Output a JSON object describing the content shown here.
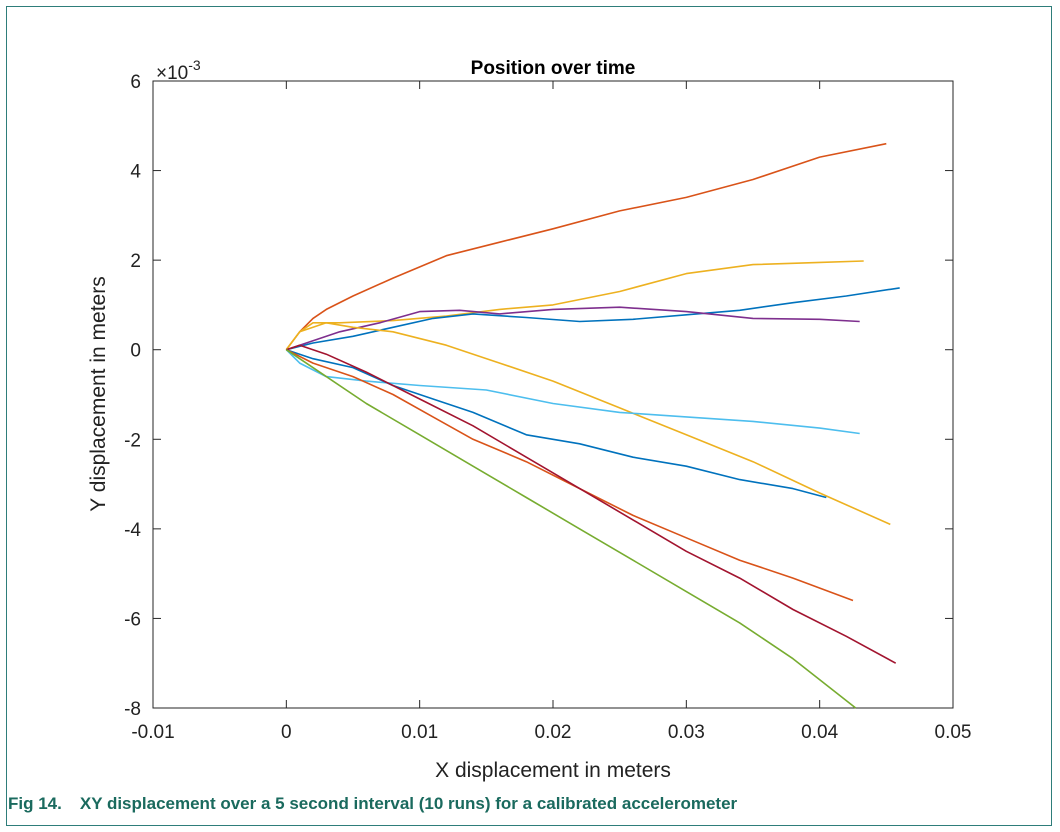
{
  "figure": {
    "caption_number": "Fig 14.",
    "caption_text": "XY displacement over a 5 second interval (10 runs) for a calibrated accelerometer"
  },
  "chart_data": {
    "type": "line",
    "title": "Position over time",
    "xlabel": "X displacement in meters",
    "ylabel": "Y displacement in meters",
    "y_multiplier_label": "×10",
    "y_multiplier_exp": "-3",
    "xlim": [
      -0.01,
      0.05
    ],
    "ylim": [
      -0.008,
      0.006
    ],
    "x_ticks": [
      -0.01,
      0,
      0.01,
      0.02,
      0.03,
      0.04,
      0.05
    ],
    "x_tick_labels": [
      "-0.01",
      "0",
      "0.01",
      "0.02",
      "0.03",
      "0.04",
      "0.05"
    ],
    "y_ticks": [
      -0.008,
      -0.006,
      -0.004,
      -0.002,
      0,
      0.002,
      0.004,
      0.006
    ],
    "y_tick_labels": [
      "-8",
      "-6",
      "-4",
      "-2",
      "0",
      "2",
      "4",
      "6"
    ],
    "grid": false,
    "series": [
      {
        "color": "#D95319",
        "x": [
          0,
          0.001,
          0.002,
          0.003,
          0.005,
          0.008,
          0.012,
          0.016,
          0.02,
          0.025,
          0.03,
          0.035,
          0.04,
          0.045
        ],
        "y": [
          0,
          0.0004,
          0.0007,
          0.0009,
          0.0012,
          0.0016,
          0.0021,
          0.0024,
          0.0027,
          0.0031,
          0.0034,
          0.0038,
          0.0043,
          0.0046
        ]
      },
      {
        "color": "#EDB120",
        "x": [
          0,
          0.001,
          0.002,
          0.004,
          0.008,
          0.012,
          0.016,
          0.02,
          0.025,
          0.03,
          0.035,
          0.04,
          0.0433
        ],
        "y": [
          0,
          0.0004,
          0.0006,
          0.0006,
          0.00065,
          0.00075,
          0.0009,
          0.001,
          0.0013,
          0.0017,
          0.0019,
          0.00195,
          0.00198
        ]
      },
      {
        "color": "#0072BD",
        "x": [
          0,
          0.002,
          0.005,
          0.008,
          0.011,
          0.014,
          0.018,
          0.022,
          0.026,
          0.03,
          0.034,
          0.038,
          0.042,
          0.046
        ],
        "y": [
          0,
          0.00015,
          0.0003,
          0.0005,
          0.0007,
          0.0008,
          0.00072,
          0.00063,
          0.00068,
          0.00078,
          0.00088,
          0.00105,
          0.0012,
          0.00138
        ]
      },
      {
        "color": "#7E2F8E",
        "x": [
          0,
          0.002,
          0.004,
          0.007,
          0.01,
          0.013,
          0.016,
          0.02,
          0.025,
          0.03,
          0.035,
          0.04,
          0.043
        ],
        "y": [
          0,
          0.0002,
          0.0004,
          0.0006,
          0.00085,
          0.00088,
          0.0008,
          0.0009,
          0.00095,
          0.00085,
          0.0007,
          0.00068,
          0.00063
        ]
      },
      {
        "color": "#EDB120",
        "x": [
          0,
          0.001,
          0.003,
          0.005,
          0.008,
          0.012,
          0.016,
          0.02,
          0.025,
          0.03,
          0.035,
          0.04,
          0.0453
        ],
        "y": [
          0,
          0.0004,
          0.0006,
          0.0005,
          0.0004,
          0.0001,
          -0.0003,
          -0.0007,
          -0.0013,
          -0.0019,
          -0.0025,
          -0.0032,
          -0.0039
        ]
      },
      {
        "color": "#4DBEEE",
        "x": [
          0,
          0.001,
          0.003,
          0.006,
          0.01,
          0.015,
          0.02,
          0.025,
          0.03,
          0.035,
          0.04,
          0.043
        ],
        "y": [
          0,
          -0.0003,
          -0.0006,
          -0.0007,
          -0.0008,
          -0.0009,
          -0.0012,
          -0.0014,
          -0.0015,
          -0.0016,
          -0.00175,
          -0.00187
        ]
      },
      {
        "color": "#0072BD",
        "x": [
          0,
          0.002,
          0.005,
          0.008,
          0.011,
          0.014,
          0.018,
          0.022,
          0.026,
          0.03,
          0.034,
          0.038,
          0.0405
        ],
        "y": [
          0,
          -0.0002,
          -0.0004,
          -0.0008,
          -0.0011,
          -0.0014,
          -0.0019,
          -0.0021,
          -0.0024,
          -0.0026,
          -0.0029,
          -0.0031,
          -0.0033
        ]
      },
      {
        "color": "#D95319",
        "x": [
          0,
          0.002,
          0.005,
          0.008,
          0.011,
          0.014,
          0.018,
          0.022,
          0.026,
          0.03,
          0.034,
          0.038,
          0.0425
        ],
        "y": [
          0,
          -0.0003,
          -0.0006,
          -0.001,
          -0.0015,
          -0.002,
          -0.0025,
          -0.0031,
          -0.0037,
          -0.0042,
          -0.0047,
          -0.0051,
          -0.0056
        ]
      },
      {
        "color": "#A2142F",
        "x": [
          0,
          0.001,
          0.003,
          0.006,
          0.01,
          0.014,
          0.018,
          0.022,
          0.026,
          0.03,
          0.034,
          0.038,
          0.042,
          0.0457
        ],
        "y": [
          0,
          0.0001,
          -0.0001,
          -0.0005,
          -0.0011,
          -0.0017,
          -0.0024,
          -0.0031,
          -0.0038,
          -0.0045,
          -0.0051,
          -0.0058,
          -0.0064,
          -0.007
        ]
      },
      {
        "color": "#77AC30",
        "x": [
          0,
          0.001,
          0.003,
          0.006,
          0.01,
          0.014,
          0.018,
          0.022,
          0.026,
          0.03,
          0.034,
          0.038,
          0.0427
        ],
        "y": [
          0,
          -0.0002,
          -0.0006,
          -0.0012,
          -0.0019,
          -0.0026,
          -0.0033,
          -0.004,
          -0.0047,
          -0.0054,
          -0.0061,
          -0.0069,
          -0.008
        ]
      }
    ]
  }
}
